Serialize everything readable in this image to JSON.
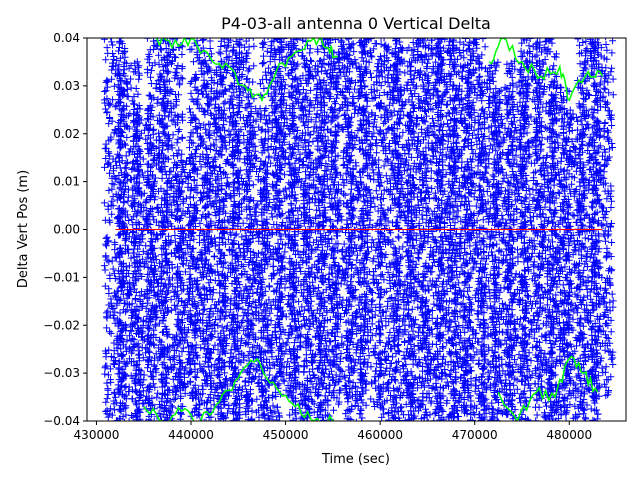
{
  "chart_data": {
    "type": "scatter",
    "title": "P4-03-all antenna 0 Vertical Delta",
    "xlabel": "Time (sec)",
    "ylabel": "Delta Vert Pos (m)",
    "xlim": [
      429000,
      486000
    ],
    "ylim": [
      -0.04,
      0.04
    ],
    "xticks": [
      430000,
      440000,
      450000,
      460000,
      470000,
      480000
    ],
    "yticks": [
      -0.04,
      -0.03,
      -0.02,
      -0.01,
      0.0,
      0.01,
      0.02,
      0.03,
      0.04
    ],
    "xtick_labels": [
      "430000",
      "440000",
      "450000",
      "460000",
      "470000",
      "480000"
    ],
    "ytick_labels": [
      "−0.04",
      "−0.03",
      "−0.02",
      "−0.01",
      "0.00",
      "0.01",
      "0.02",
      "0.03",
      "0.04"
    ],
    "grid": false,
    "legend": "none",
    "series": [
      {
        "marker": "+",
        "color": "#0000ff",
        "columns": [
          {
            "x": 432000,
            "ymin": -0.04,
            "ymax": 0.04
          },
          {
            "x": 433500,
            "ymin": -0.04,
            "ymax": 0.035
          },
          {
            "x": 435000,
            "ymin": -0.04,
            "ymax": 0.025
          },
          {
            "x": 436500,
            "ymin": -0.04,
            "ymax": 0.04
          },
          {
            "x": 438000,
            "ymin": -0.04,
            "ymax": 0.04
          },
          {
            "x": 439500,
            "ymin": -0.035,
            "ymax": 0.015
          },
          {
            "x": 441000,
            "ymin": -0.04,
            "ymax": 0.04
          },
          {
            "x": 442500,
            "ymin": -0.04,
            "ymax": 0.035
          },
          {
            "x": 444000,
            "ymin": -0.04,
            "ymax": 0.04
          },
          {
            "x": 445500,
            "ymin": -0.04,
            "ymax": 0.04
          },
          {
            "x": 447000,
            "ymin": -0.04,
            "ymax": 0.025
          },
          {
            "x": 448500,
            "ymin": -0.04,
            "ymax": 0.04
          },
          {
            "x": 450000,
            "ymin": -0.035,
            "ymax": 0.04
          },
          {
            "x": 451500,
            "ymin": -0.04,
            "ymax": 0.04
          },
          {
            "x": 453000,
            "ymin": -0.04,
            "ymax": 0.035
          },
          {
            "x": 454500,
            "ymin": -0.04,
            "ymax": 0.04
          },
          {
            "x": 456000,
            "ymin": -0.035,
            "ymax": 0.04
          },
          {
            "x": 457500,
            "ymin": -0.04,
            "ymax": 0.04
          },
          {
            "x": 459000,
            "ymin": -0.037,
            "ymax": 0.04
          },
          {
            "x": 461000,
            "ymin": -0.04,
            "ymax": 0.04
          },
          {
            "x": 462500,
            "ymin": -0.04,
            "ymax": 0.038
          },
          {
            "x": 464000,
            "ymin": -0.04,
            "ymax": 0.04
          },
          {
            "x": 465500,
            "ymin": -0.04,
            "ymax": 0.04
          },
          {
            "x": 467000,
            "ymin": -0.04,
            "ymax": 0.04
          },
          {
            "x": 468500,
            "ymin": -0.04,
            "ymax": 0.04
          },
          {
            "x": 470000,
            "ymin": -0.04,
            "ymax": 0.04
          },
          {
            "x": 471500,
            "ymin": -0.04,
            "ymax": 0.035
          },
          {
            "x": 473000,
            "ymin": -0.04,
            "ymax": 0.03
          },
          {
            "x": 474500,
            "ymin": -0.04,
            "ymax": 0.035
          },
          {
            "x": 476000,
            "ymin": -0.035,
            "ymax": 0.04
          },
          {
            "x": 477500,
            "ymin": -0.04,
            "ymax": 0.04
          },
          {
            "x": 479000,
            "ymin": -0.04,
            "ymax": 0.03
          },
          {
            "x": 480500,
            "ymin": -0.04,
            "ymax": 0.025
          },
          {
            "x": 482000,
            "ymin": -0.04,
            "ymax": 0.04
          },
          {
            "x": 483500,
            "ymin": -0.035,
            "ymax": 0.04
          }
        ]
      },
      {
        "type": "line",
        "color": "#00ff00",
        "upper": [
          {
            "x": 436000,
            "y": 0.04
          },
          {
            "x": 438000,
            "y": 0.038
          },
          {
            "x": 440000,
            "y": 0.04
          },
          {
            "x": 442000,
            "y": 0.036
          },
          {
            "x": 444000,
            "y": 0.034
          },
          {
            "x": 446000,
            "y": 0.029
          },
          {
            "x": 447500,
            "y": 0.027
          },
          {
            "x": 449000,
            "y": 0.033
          },
          {
            "x": 451000,
            "y": 0.037
          },
          {
            "x": 453000,
            "y": 0.04
          },
          {
            "x": 454500,
            "y": 0.038
          },
          {
            "x": 455500,
            "y": 0.036
          },
          {
            "x": 471500,
            "y": 0.035
          },
          {
            "x": 473000,
            "y": 0.04
          },
          {
            "x": 475000,
            "y": 0.035
          },
          {
            "x": 477000,
            "y": 0.032
          },
          {
            "x": 479000,
            "y": 0.034
          },
          {
            "x": 480000,
            "y": 0.027
          },
          {
            "x": 482000,
            "y": 0.033
          },
          {
            "x": 483500,
            "y": 0.032
          }
        ],
        "lower": [
          {
            "x": 435000,
            "y": -0.037
          },
          {
            "x": 437000,
            "y": -0.04
          },
          {
            "x": 439000,
            "y": -0.038
          },
          {
            "x": 441000,
            "y": -0.04
          },
          {
            "x": 443000,
            "y": -0.036
          },
          {
            "x": 445000,
            "y": -0.031
          },
          {
            "x": 447000,
            "y": -0.027
          },
          {
            "x": 449000,
            "y": -0.033
          },
          {
            "x": 451000,
            "y": -0.037
          },
          {
            "x": 453000,
            "y": -0.04
          },
          {
            "x": 455000,
            "y": -0.04
          },
          {
            "x": 472500,
            "y": -0.034
          },
          {
            "x": 474500,
            "y": -0.04
          },
          {
            "x": 476500,
            "y": -0.034
          },
          {
            "x": 478500,
            "y": -0.035
          },
          {
            "x": 480000,
            "y": -0.027
          },
          {
            "x": 481500,
            "y": -0.03
          },
          {
            "x": 483000,
            "y": -0.034
          }
        ]
      },
      {
        "type": "line",
        "color": "#ff0000",
        "points": [
          {
            "x": 432000,
            "y": 0.0
          },
          {
            "x": 483500,
            "y": 0.0
          }
        ]
      }
    ]
  }
}
